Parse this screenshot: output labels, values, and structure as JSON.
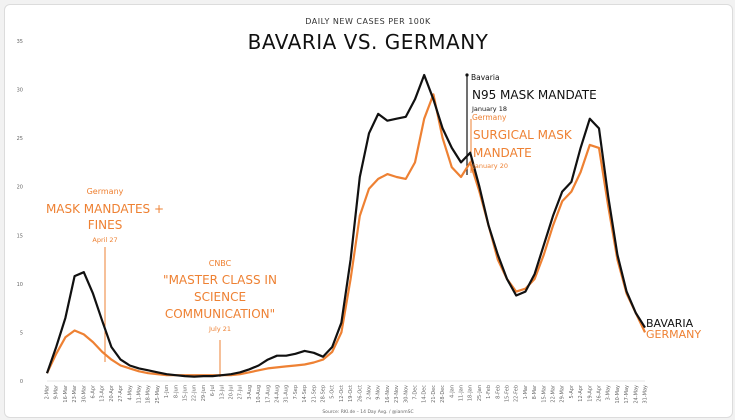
{
  "chart_data": {
    "type": "line",
    "subtitle": "DAILY NEW CASES PER 100K",
    "title": "BAVARIA VS. GERMANY",
    "source": "Source: RKI.de – 14 Day Avg. / @ianmSC",
    "ylim": [
      0,
      35
    ],
    "y_ticks": [
      0,
      5,
      10,
      15,
      20,
      25,
      30,
      35
    ],
    "grid": false,
    "colors": {
      "bavaria": "#111111",
      "germany": "#ee8133"
    },
    "x_ticks": [
      "2-Mar",
      "9-Mar",
      "16-Mar",
      "23-Mar",
      "30-Mar",
      "6-Apr",
      "13-Apr",
      "20-Apr",
      "27-Apr",
      "4-May",
      "11-May",
      "18-May",
      "25-May",
      "1-Jun",
      "8-Jun",
      "15-Jun",
      "22-Jun",
      "29-Jun",
      "6-Jul",
      "13-Jul",
      "20-Jul",
      "27-Jul",
      "3-Aug",
      "10-Aug",
      "17-Aug",
      "24-Aug",
      "31-Aug",
      "7-Sep",
      "14-Sep",
      "21-Sep",
      "28-Sep",
      "5-Oct",
      "12-Oct",
      "19-Oct",
      "26-Oct",
      "2-Nov",
      "9-Nov",
      "16-Nov",
      "23-Nov",
      "30-Nov",
      "7-Dec",
      "14-Dec",
      "21-Dec",
      "28-Dec",
      "4-Jan",
      "11-Jan",
      "18-Jan",
      "25-Jan",
      "1-Feb",
      "8-Feb",
      "15-Feb",
      "22-Feb",
      "1-Mar",
      "8-Mar",
      "15-Mar",
      "22-Mar",
      "29-Mar",
      "5-Apr",
      "12-Apr",
      "19-Apr",
      "26-Apr",
      "3-May",
      "10-May",
      "17-May",
      "24-May",
      "31-May"
    ],
    "series": [
      {
        "name": "BAVARIA",
        "values": [
          0.8,
          3.5,
          6.5,
          10.8,
          11.2,
          9,
          6.2,
          3.5,
          2.2,
          1.6,
          1.3,
          1.1,
          0.9,
          0.7,
          0.6,
          0.5,
          0.45,
          0.5,
          0.5,
          0.6,
          0.7,
          0.9,
          1.2,
          1.6,
          2.2,
          2.6,
          2.6,
          2.8,
          3.1,
          2.9,
          2.5,
          3.5,
          6,
          12.5,
          21,
          25.5,
          27.5,
          26.8,
          27,
          27.2,
          29,
          31.5,
          29,
          26,
          24,
          22.5,
          23.5,
          20,
          16,
          13,
          10.5,
          8.8,
          9.2,
          11,
          14,
          17,
          19.5,
          20.5,
          24,
          27,
          26,
          19,
          13,
          9.2,
          7,
          5.5
        ]
      },
      {
        "name": "GERMANY",
        "values": [
          0.8,
          2.8,
          4.5,
          5.2,
          4.8,
          4,
          3,
          2.2,
          1.6,
          1.3,
          1,
          0.8,
          0.7,
          0.6,
          0.6,
          0.6,
          0.6,
          0.6,
          0.6,
          0.6,
          0.6,
          0.7,
          0.9,
          1.1,
          1.3,
          1.4,
          1.5,
          1.6,
          1.7,
          1.9,
          2.2,
          3,
          5,
          10.5,
          17,
          19.8,
          20.8,
          21.3,
          21,
          20.8,
          22.5,
          27,
          29.5,
          25,
          22,
          21,
          22.5,
          19.5,
          16,
          12.5,
          10.5,
          9.2,
          9.5,
          10.5,
          13,
          16,
          18.5,
          19.5,
          21.5,
          24.3,
          24,
          18,
          12.5,
          9,
          7,
          5
        ]
      }
    ],
    "end_labels": {
      "bavaria": "BAVARIA",
      "germany": "GERMANY"
    },
    "annotations": {
      "cnbc": {
        "source": "CNBC",
        "text": [
          "\"MASTER CLASS IN",
          "SCIENCE",
          "COMMUNICATION\""
        ],
        "date": "July 21"
      },
      "germany_mask": {
        "source": "Germany",
        "text": [
          "MASK MANDATES +",
          "FINES"
        ],
        "date": "April 27"
      },
      "bavaria_n95": {
        "source": "Bavaria",
        "text": [
          "N95 MASK MANDATE"
        ],
        "date": "January 18"
      },
      "germany_surgical": {
        "source": "Germany",
        "text": [
          "SURGICAL MASK",
          "MANDATE"
        ],
        "date": "January 20"
      }
    }
  }
}
